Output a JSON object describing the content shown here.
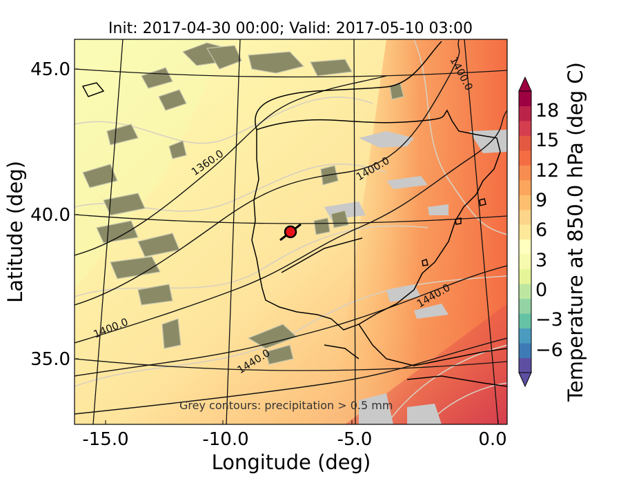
{
  "title": "Init: 2017-04-30 00:00; Valid: 2017-05-10 03:00",
  "xlabel": "Longitude (deg)",
  "ylabel": "Latitude (deg)",
  "x_ticks": [
    "-15.0",
    "-10.0",
    "-5.0",
    "0.0"
  ],
  "y_ticks": [
    "45.0",
    "40.0",
    "35.0"
  ],
  "colorbar": {
    "label": "Temperature at 850.0 hPa (deg C)",
    "ticks": [
      "18",
      "15",
      "12",
      "9",
      "6",
      "3",
      "0",
      "−3",
      "−6"
    ],
    "colors": [
      "#5e4fa2",
      "#3e7bb6",
      "#4b9bc1",
      "#66c2a5",
      "#94d3a4",
      "#bde6a0",
      "#e6f598",
      "#f6faae",
      "#ffffbf",
      "#fee99a",
      "#fdd58a",
      "#fdbf6f",
      "#fca55d",
      "#f88d51",
      "#f46d43",
      "#e45941",
      "#d53e4f",
      "#bb2448",
      "#9e0142"
    ]
  },
  "contour_labels": [
    "1360.0",
    "1400.0",
    "1400.0",
    "1400.0",
    "1440.0",
    "1440.0"
  ],
  "note": "Grey contours: precipitation > 0.5 mm",
  "marker": {
    "lon": -7.6,
    "lat": 39.3,
    "color": "#e8141a"
  }
}
